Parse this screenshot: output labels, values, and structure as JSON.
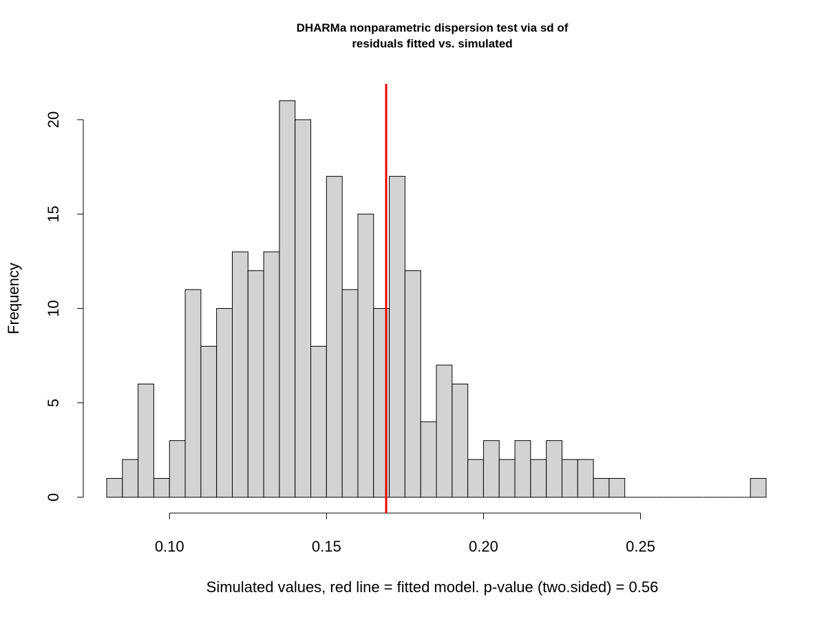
{
  "chart_data": {
    "type": "bar",
    "subtype": "histogram",
    "title_line1": "DHARMa nonparametric dispersion test via sd of",
    "title_line2": "residuals fitted vs. simulated",
    "xlabel": "Simulated values, red line = fitted model. p-value (two.sided) = 0.56",
    "ylabel": "Frequency",
    "bin_start": 0.08,
    "bin_width": 0.005,
    "bin_counts": [
      1,
      2,
      6,
      1,
      3,
      11,
      8,
      10,
      13,
      12,
      13,
      21,
      20,
      8,
      17,
      11,
      15,
      10,
      17,
      12,
      4,
      7,
      6,
      2,
      3,
      2,
      3,
      2,
      3,
      2,
      2,
      1,
      1,
      0,
      0,
      0,
      0,
      0,
      0,
      0,
      0,
      1
    ],
    "xlim": [
      0.08,
      0.29
    ],
    "ylim": [
      0,
      22
    ],
    "x_ticks": [
      0.1,
      0.15,
      0.2,
      0.25
    ],
    "x_tick_labels": [
      "0.10",
      "0.15",
      "0.20",
      "0.25"
    ],
    "y_ticks": [
      0,
      5,
      10,
      15,
      20
    ],
    "y_tick_labels": [
      "0",
      "5",
      "10",
      "15",
      "20"
    ],
    "observed_value": 0.169,
    "bar_color": "#d3d3d3",
    "bar_border_color": "#000000",
    "line_color": "#ee0000",
    "grid": false
  }
}
